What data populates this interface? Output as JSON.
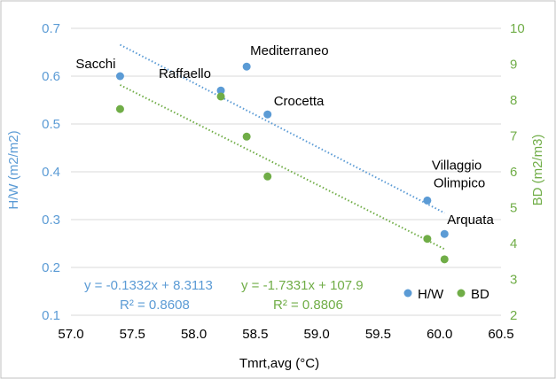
{
  "colors": {
    "hw": "#5B9BD5",
    "bd": "#70AD47",
    "grid": "#D9D9D9",
    "frame": "#BFBFBF",
    "tick_text": "#595959"
  },
  "chart_data": {
    "type": "scatter",
    "xlabel": "Tmrt,avg (°C)",
    "ylabel": "H/W (m2/m2)",
    "y2label": "BD (m2/m3)",
    "xlim": [
      57.0,
      60.5
    ],
    "ylim": [
      0.1,
      0.7
    ],
    "y2lim": [
      2,
      10
    ],
    "x_ticks": [
      "57.0",
      "57.5",
      "58.0",
      "58.5",
      "59.0",
      "59.5",
      "60.0",
      "60.5"
    ],
    "y_ticks": [
      "0.1",
      "0.2",
      "0.3",
      "0.4",
      "0.5",
      "0.6",
      "0.7"
    ],
    "y2_ticks": [
      "2",
      "3",
      "4",
      "5",
      "6",
      "7",
      "8",
      "9",
      "10"
    ],
    "grid": true,
    "legend_position": "bottom-right",
    "series": [
      {
        "name": "H/W",
        "axis": "left",
        "color": "#5B9BD5",
        "points": [
          {
            "x": 57.4,
            "y": 0.6,
            "label": "Sacchi"
          },
          {
            "x": 58.22,
            "y": 0.57,
            "label": "Raffaello"
          },
          {
            "x": 58.43,
            "y": 0.62,
            "label": "Mediterraneo"
          },
          {
            "x": 58.6,
            "y": 0.52,
            "label": "Crocetta"
          },
          {
            "x": 59.9,
            "y": 0.34,
            "label": "Villaggio Olimpico"
          },
          {
            "x": 60.04,
            "y": 0.27,
            "label": "Arquata"
          }
        ],
        "trendline": {
          "equation": "y = -0.1332x + 8.3113",
          "r2": "R² = 0.8608",
          "slope": -0.1332,
          "intercept": 8.3113
        }
      },
      {
        "name": "BD",
        "axis": "right",
        "color": "#70AD47",
        "points": [
          {
            "x": 57.4,
            "y": 7.75
          },
          {
            "x": 58.22,
            "y": 8.1
          },
          {
            "x": 58.43,
            "y": 6.98
          },
          {
            "x": 58.6,
            "y": 5.87
          },
          {
            "x": 59.9,
            "y": 4.13
          },
          {
            "x": 60.04,
            "y": 3.56
          }
        ],
        "trendline": {
          "equation": "y = -1.7331x + 107.9",
          "r2": "R² = 0.8806",
          "slope": -1.7331,
          "intercept": 107.9
        }
      }
    ]
  }
}
